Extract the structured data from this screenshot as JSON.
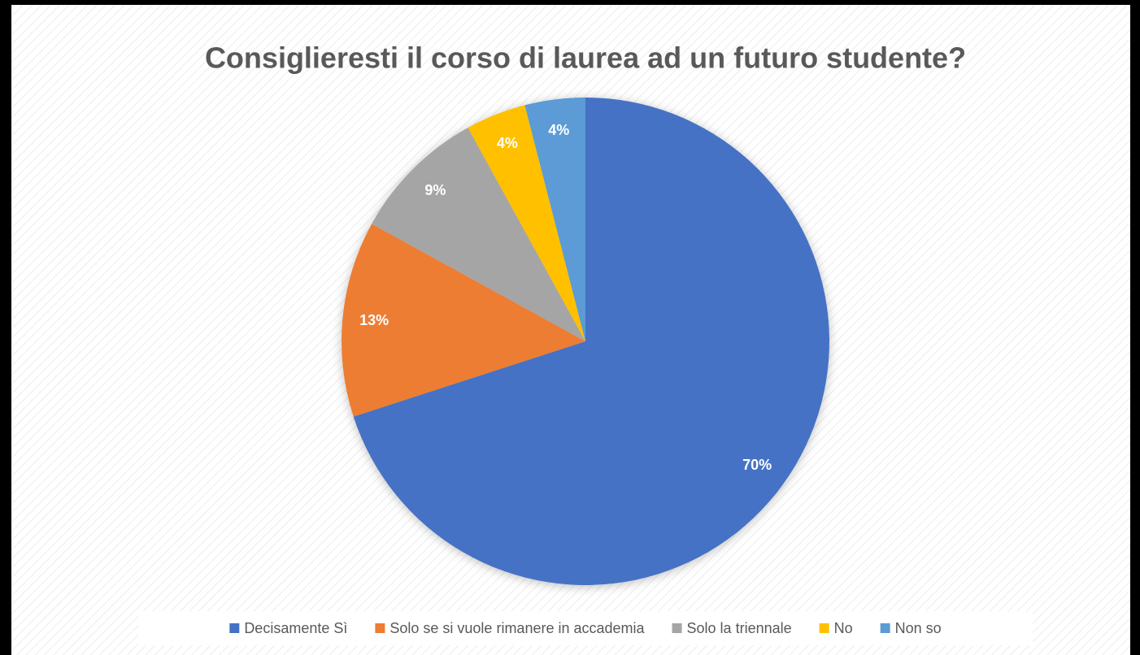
{
  "chart_data": {
    "type": "pie",
    "title": "Consiglieresti il corso di laurea ad un futuro studente?",
    "categories": [
      "Decisamente Sì",
      "Solo se si vuole rimanere in accademia",
      "Solo la triennale",
      "No",
      "Non so"
    ],
    "values": [
      70,
      13,
      9,
      4,
      4
    ],
    "value_labels": [
      "70%",
      "13%",
      "9%",
      "4%",
      "4%"
    ],
    "colors": [
      "#4472c4",
      "#ed7d31",
      "#a5a5a5",
      "#ffc000",
      "#5b9bd5"
    ],
    "legend": "bottom"
  }
}
